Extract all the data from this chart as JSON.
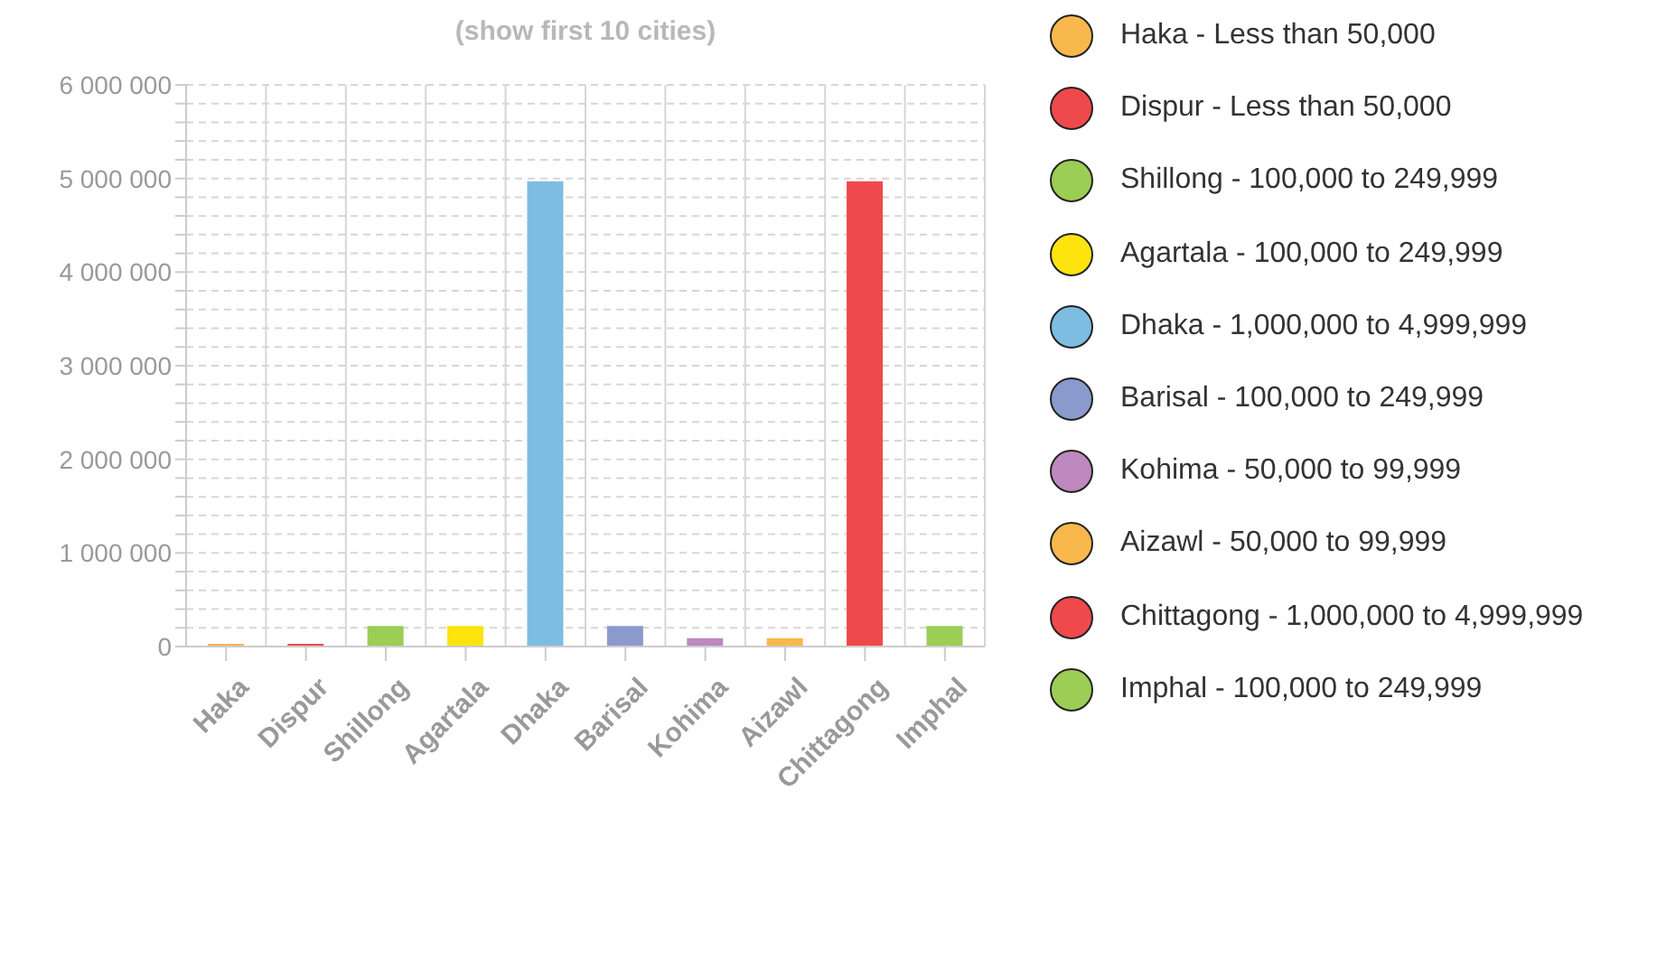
{
  "chart_data": {
    "type": "bar",
    "title": "(show first 10 cities)",
    "categories": [
      "Haka",
      "Dispur",
      "Shillong",
      "Agartala",
      "Dhaka",
      "Barisal",
      "Kohima",
      "Aizawl",
      "Chittagong",
      "Imphal"
    ],
    "stacked": true,
    "series": [
      {
        "name": "Haka - Less than 50,000",
        "color": "#f9b84b",
        "values": [
          30000,
          null,
          null,
          null,
          null,
          null,
          null,
          null,
          null,
          null
        ]
      },
      {
        "name": "Dispur - Less than 50,000",
        "color": "#f0494b",
        "values": [
          null,
          30000,
          null,
          null,
          null,
          null,
          null,
          null,
          null,
          null
        ]
      },
      {
        "name": "Shillong - 100,000 to 249,999",
        "color": "#9ccd55",
        "values": [
          null,
          null,
          220000,
          null,
          null,
          null,
          null,
          null,
          null,
          null
        ]
      },
      {
        "name": "Agartala - 100,000 to 249,999",
        "color": "#fde40f",
        "values": [
          null,
          null,
          null,
          220000,
          null,
          null,
          null,
          null,
          null,
          null
        ]
      },
      {
        "name": "Dhaka - 1,000,000 to 4,999,999",
        "color": "#7dbde1",
        "values": [
          null,
          null,
          null,
          null,
          4970000,
          null,
          null,
          null,
          null,
          null
        ]
      },
      {
        "name": "Barisal - 100,000 to 249,999",
        "color": "#8b9acc",
        "values": [
          null,
          null,
          null,
          null,
          null,
          220000,
          null,
          null,
          null,
          null
        ]
      },
      {
        "name": "Kohima - 50,000 to 99,999",
        "color": "#bd89bf",
        "values": [
          null,
          null,
          null,
          null,
          null,
          null,
          90000,
          null,
          null,
          null
        ]
      },
      {
        "name": "Aizawl - 50,000 to 99,999",
        "color": "#f9b84b",
        "values": [
          null,
          null,
          null,
          null,
          null,
          null,
          null,
          90000,
          null,
          null
        ]
      },
      {
        "name": "Chittagong - 1,000,000 to 4,999,999",
        "color": "#f0494b",
        "values": [
          null,
          null,
          null,
          null,
          null,
          null,
          null,
          null,
          4970000,
          null
        ]
      },
      {
        "name": "Imphal - 100,000 to 249,999",
        "color": "#9ccd55",
        "values": [
          null,
          null,
          null,
          null,
          null,
          null,
          null,
          null,
          null,
          220000
        ]
      }
    ],
    "ylim": [
      0,
      6000000
    ],
    "yticks": [
      {
        "value": 0,
        "label": "0"
      },
      {
        "value": 200000,
        "label": null
      },
      {
        "value": 400000,
        "label": null
      },
      {
        "value": 600000,
        "label": null
      },
      {
        "value": 800000,
        "label": null
      },
      {
        "value": 1000000,
        "label": "1 000 000"
      },
      {
        "value": 1200000,
        "label": null
      },
      {
        "value": 1400000,
        "label": null
      },
      {
        "value": 1600000,
        "label": null
      },
      {
        "value": 1800000,
        "label": null
      },
      {
        "value": 2000000,
        "label": "2 000 000"
      },
      {
        "value": 2200000,
        "label": null
      },
      {
        "value": 2400000,
        "label": null
      },
      {
        "value": 2600000,
        "label": null
      },
      {
        "value": 2800000,
        "label": null
      },
      {
        "value": 3000000,
        "label": "3 000 000"
      },
      {
        "value": 3200000,
        "label": null
      },
      {
        "value": 3400000,
        "label": null
      },
      {
        "value": 3600000,
        "label": null
      },
      {
        "value": 3800000,
        "label": null
      },
      {
        "value": 4000000,
        "label": "4 000 000"
      },
      {
        "value": 4200000,
        "label": null
      },
      {
        "value": 4400000,
        "label": null
      },
      {
        "value": 4600000,
        "label": null
      },
      {
        "value": 4800000,
        "label": null
      },
      {
        "value": 5000000,
        "label": "5 000 000"
      },
      {
        "value": 5200000,
        "label": null
      },
      {
        "value": 5400000,
        "label": null
      },
      {
        "value": 5600000,
        "label": null
      },
      {
        "value": 5800000,
        "label": null
      },
      {
        "value": 6000000,
        "label": "6 000 000"
      }
    ],
    "grid": true,
    "legend": "right"
  }
}
